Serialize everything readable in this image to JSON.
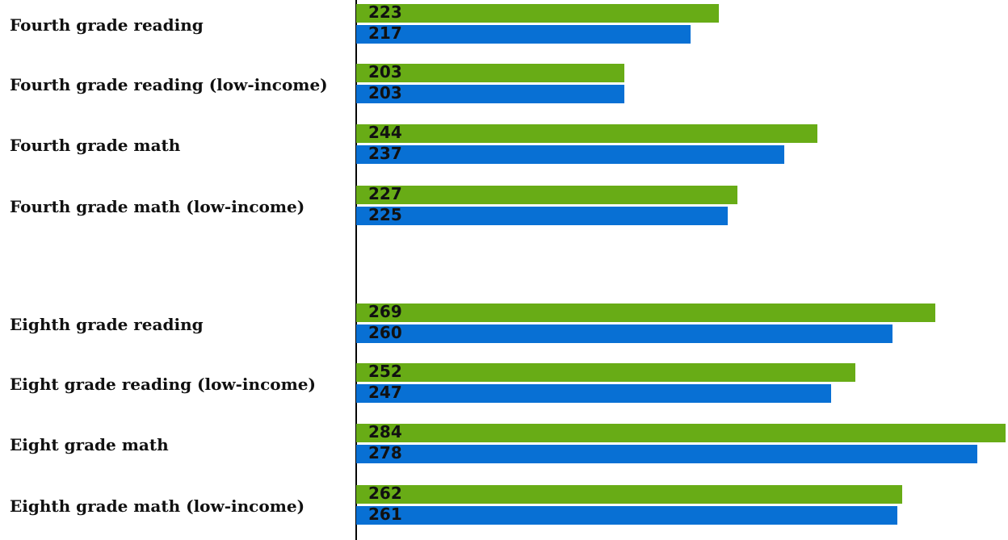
{
  "chart_data": {
    "type": "bar",
    "orientation": "horizontal",
    "categories": [
      "Fourth grade reading",
      "Fourth grade reading (low-income)",
      "Fourth grade math",
      "Fourth grade math (low-income)",
      "Eighth grade reading",
      "Eight grade reading (low-income)",
      "Eight grade math",
      "Eighth grade math (low-income)"
    ],
    "series": [
      {
        "color": "#68ac16",
        "values": [
          223,
          203,
          244,
          227,
          269,
          252,
          284,
          262
        ]
      },
      {
        "color": "#0870d4",
        "values": [
          217,
          203,
          237,
          225,
          260,
          247,
          278,
          261
        ]
      }
    ],
    "xlim": [
      146,
      284
    ],
    "grid": false,
    "legend": "none"
  }
}
